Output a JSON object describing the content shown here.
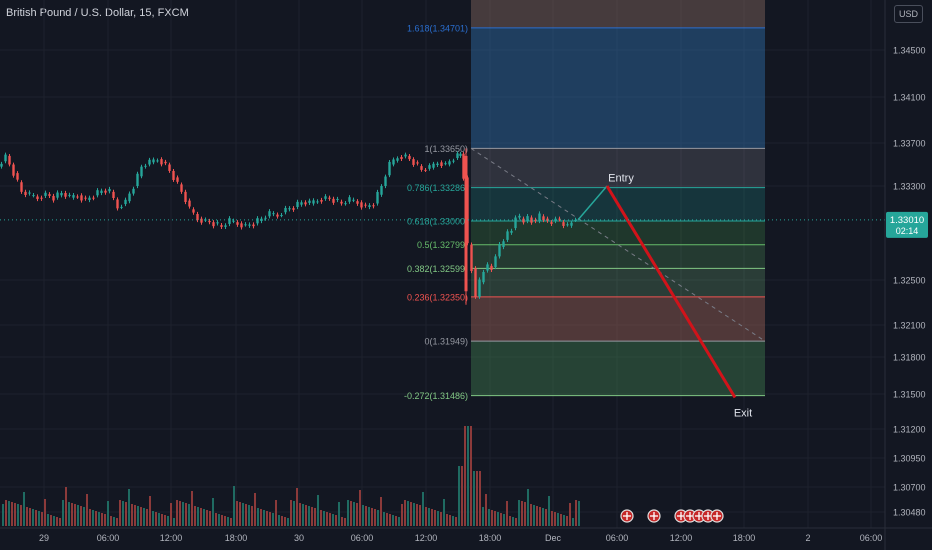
{
  "header": {
    "title": "British Pound / U.S. Dollar, 15, FXCM",
    "currency_button": "USD"
  },
  "price_label": {
    "price": "1.33010",
    "countdown": "02:14"
  },
  "colors": {
    "up": "#26a69a",
    "down": "#ef5350",
    "background": "#131722",
    "grid": "#1e222d",
    "axis_text": "#b2b5be",
    "fib_line_blue": "#2a6ecf",
    "trade_line": "#d1131a"
  },
  "chart_data": {
    "type": "candlestick",
    "title": "British Pound / U.S. Dollar, 15, FXCM",
    "y_ticks": [
      1.345,
      1.341,
      1.337,
      1.333,
      1.325,
      1.321,
      1.318,
      1.315,
      1.312,
      1.3095,
      1.307,
      1.3048
    ],
    "y_tick_labels": [
      "1.34500",
      "1.34100",
      "1.33700",
      "1.33300",
      "1.32500",
      "1.32100",
      "1.31800",
      "1.31500",
      "1.31200",
      "1.30950",
      "1.30700",
      "1.30480"
    ],
    "x_tick_labels": [
      "29",
      "06:00",
      "12:00",
      "18:00",
      "30",
      "06:00",
      "12:00",
      "18:00",
      "Dec",
      "06:00",
      "12:00",
      "18:00",
      "2",
      "06:00"
    ],
    "ylim": [
      1.3035,
      1.3495
    ],
    "current_price": 1.3301,
    "fibonacci": [
      {
        "level": "1.618",
        "price": 1.34701,
        "label": "1.618(1.34701)",
        "color": "#2a6ecf"
      },
      {
        "level": "1",
        "price": 1.3365,
        "label": "1(1.33650)",
        "color": "#9598a1"
      },
      {
        "level": "0.786",
        "price": 1.33286,
        "label": "0.786(1.33286)",
        "color": "#26a69a"
      },
      {
        "level": "0.618",
        "price": 1.33,
        "label": "0.618(1.33000)",
        "color": "#26a69a"
      },
      {
        "level": "0.5",
        "price": 1.32799,
        "label": "0.5(1.32799)",
        "color": "#66bb6a"
      },
      {
        "level": "0.382",
        "price": 1.32599,
        "label": "0.382(1.32599)",
        "color": "#81c784"
      },
      {
        "level": "0.236",
        "price": 1.3235,
        "label": "0.236(1.32350)",
        "color": "#ef5350"
      },
      {
        "level": "0",
        "price": 1.31949,
        "label": "0(1.31949)",
        "color": "#9598a1"
      },
      {
        "level": "-0.272",
        "price": 1.31486,
        "label": "-0.272(1.31486)",
        "color": "#81c784"
      }
    ],
    "annotations": [
      {
        "text": "Entry",
        "price": 1.3338
      },
      {
        "text": "Exit",
        "price": 1.3134
      }
    ],
    "projection": {
      "entry_price": 1.333,
      "exit_price": 1.3147
    },
    "series": [
      {
        "name": "price",
        "points": [
          [
            0,
            1.3348
          ],
          [
            8,
            1.3358
          ],
          [
            16,
            1.3342
          ],
          [
            24,
            1.3325
          ],
          [
            32,
            1.3322
          ],
          [
            40,
            1.332
          ],
          [
            48,
            1.3323
          ],
          [
            56,
            1.332
          ],
          [
            64,
            1.3324
          ],
          [
            72,
            1.332
          ],
          [
            80,
            1.3322
          ],
          [
            88,
            1.3318
          ],
          [
            96,
            1.3322
          ],
          [
            104,
            1.3326
          ],
          [
            112,
            1.3325
          ],
          [
            120,
            1.3312
          ],
          [
            128,
            1.3317
          ],
          [
            136,
            1.333
          ],
          [
            144,
            1.3348
          ],
          [
            152,
            1.3352
          ],
          [
            160,
            1.3355
          ],
          [
            168,
            1.335
          ],
          [
            176,
            1.3338
          ],
          [
            184,
            1.3325
          ],
          [
            192,
            1.331
          ],
          [
            200,
            1.3302
          ],
          [
            208,
            1.33
          ],
          [
            216,
            1.3298
          ],
          [
            224,
            1.3295
          ],
          [
            232,
            1.33
          ],
          [
            240,
            1.3298
          ],
          [
            248,
            1.3296
          ],
          [
            256,
            1.3298
          ],
          [
            264,
            1.3302
          ],
          [
            272,
            1.3306
          ],
          [
            280,
            1.3305
          ],
          [
            288,
            1.331
          ],
          [
            296,
            1.3312
          ],
          [
            304,
            1.3316
          ],
          [
            312,
            1.3315
          ],
          [
            320,
            1.3318
          ],
          [
            328,
            1.332
          ],
          [
            336,
            1.3318
          ],
          [
            344,
            1.3315
          ],
          [
            352,
            1.3318
          ],
          [
            360,
            1.3316
          ],
          [
            368,
            1.3312
          ],
          [
            376,
            1.3315
          ],
          [
            384,
            1.333
          ],
          [
            392,
            1.335
          ],
          [
            400,
            1.3357
          ],
          [
            408,
            1.3358
          ],
          [
            416,
            1.3352
          ],
          [
            424,
            1.3345
          ],
          [
            432,
            1.3347
          ],
          [
            440,
            1.3352
          ],
          [
            448,
            1.335
          ],
          [
            456,
            1.3356
          ],
          [
            462,
            1.336
          ],
          [
            466,
            1.3338
          ],
          [
            470,
            1.328
          ],
          [
            474,
            1.326
          ],
          [
            478,
            1.3235
          ],
          [
            482,
            1.3248
          ],
          [
            486,
            1.3258
          ],
          [
            490,
            1.3262
          ],
          [
            494,
            1.3261
          ],
          [
            498,
            1.327
          ],
          [
            502,
            1.3278
          ],
          [
            506,
            1.3284
          ],
          [
            510,
            1.329
          ],
          [
            514,
            1.3294
          ],
          [
            518,
            1.3303
          ],
          [
            522,
            1.3302
          ],
          [
            526,
            1.33
          ],
          [
            530,
            1.3303
          ],
          [
            534,
            1.3301
          ],
          [
            538,
            1.33
          ],
          [
            542,
            1.3304
          ],
          [
            546,
            1.3302
          ],
          [
            550,
            1.3299
          ],
          [
            554,
            1.33
          ],
          [
            558,
            1.3302
          ],
          [
            562,
            1.3299
          ],
          [
            566,
            1.3297
          ],
          [
            570,
            1.3296
          ],
          [
            574,
            1.3301
          ],
          [
            578,
            1.3301
          ]
        ]
      }
    ],
    "volume": [
      32,
      14,
      40,
      28,
      18,
      12,
      16,
      30,
      40,
      12,
      22,
      26,
      38,
      30,
      20
    ]
  }
}
